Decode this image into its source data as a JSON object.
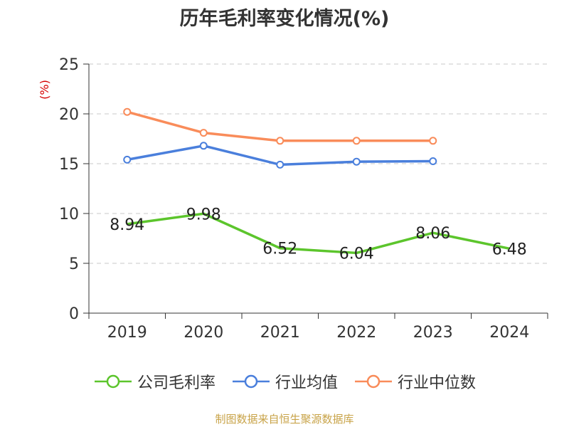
{
  "title": "历年毛利率变化情况(%)",
  "source": "制图数据来自恒生聚源数据库",
  "chart_data": {
    "type": "line",
    "title": "历年毛利率变化情况(%)",
    "ylabel": "(%)",
    "xlabel": "",
    "categories": [
      "2019",
      "2020",
      "2021",
      "2022",
      "2023",
      "2024"
    ],
    "ylim": [
      0,
      25
    ],
    "yticks": [
      0,
      5,
      10,
      15,
      20,
      25
    ],
    "grid": true,
    "legend_position": "bottom",
    "series": [
      {
        "name": "公司毛利率",
        "color": "#5cc52c",
        "values": [
          8.94,
          9.98,
          6.52,
          6.04,
          8.06,
          6.48
        ],
        "labels": [
          "8.94",
          "9.98",
          "6.52",
          "6.04",
          "8.06",
          "6.48"
        ]
      },
      {
        "name": "行业均值",
        "color": "#4a7fdc",
        "values": [
          15.4,
          16.8,
          14.9,
          15.2,
          15.25,
          null
        ]
      },
      {
        "name": "行业中位数",
        "color": "#f98c5a",
        "values": [
          20.2,
          18.1,
          17.3,
          17.3,
          17.3,
          null
        ]
      }
    ]
  }
}
